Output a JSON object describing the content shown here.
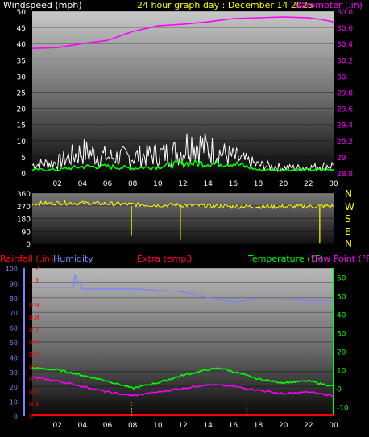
{
  "header": {
    "left_label": "Windspeed (mph)",
    "center_label": "24 hour graph day : December 14 2025",
    "right_label": "Barometer (.in)"
  },
  "colors": {
    "background": "#000000",
    "windspeed_label": "#ffffff",
    "title": "#ffff00",
    "barometer": "#ff00ff",
    "gust": "#ffffff",
    "wind_avg": "#00ff00",
    "direction": "#ffff00",
    "rainfall": "#ff0000",
    "humidity": "#8080ff",
    "extra_temp": "#ff0040",
    "temperature": "#00ff00",
    "dew_point": "#ff00ff"
  },
  "bottom_header": {
    "rainfall": "Rainfall (.in)",
    "humidity": "Humidity",
    "extra_temp": "Extra temp3",
    "temperature": "Temperature (°F)",
    "dew_point": "Dew Point (°F)"
  },
  "direction_labels": [
    "N",
    "W",
    "S",
    "E",
    "N"
  ],
  "chart_data": [
    {
      "type": "line",
      "x_ticks": [
        "02",
        "04",
        "06",
        "08",
        "10",
        "12",
        "14",
        "16",
        "18",
        "20",
        "22",
        "00"
      ],
      "y_left": {
        "label": "Windspeed (mph)",
        "ticks": [
          0,
          5,
          10,
          15,
          20,
          25,
          30,
          35,
          40,
          45,
          50
        ],
        "range": [
          0,
          50
        ]
      },
      "y_right": {
        "label": "Barometer (.in)",
        "ticks": [
          "28.8",
          "29",
          "29.2",
          "29.4",
          "29.6",
          "29.8",
          "30",
          "30.2",
          "30.4",
          "30.6",
          "30.8"
        ],
        "range": [
          28.8,
          30.8
        ]
      },
      "series": [
        {
          "name": "Gust",
          "axis": "left",
          "x_hours": [
            0,
            2,
            4,
            6,
            8,
            10,
            12,
            12.5,
            14,
            16,
            18,
            20,
            22,
            24
          ],
          "values": [
            3,
            4,
            8,
            6,
            6,
            7,
            8,
            12,
            9,
            6,
            3,
            2,
            2,
            3
          ]
        },
        {
          "name": "Wind speed",
          "axis": "left",
          "x_hours": [
            0,
            2,
            4,
            6,
            8,
            10,
            12,
            14,
            16,
            18,
            20,
            22,
            24
          ],
          "values": [
            1,
            1,
            2,
            2,
            1.5,
            2,
            3,
            3,
            3,
            1,
            1,
            1,
            1
          ]
        },
        {
          "name": "Barometer",
          "axis": "right",
          "x_hours": [
            0,
            2,
            4,
            6,
            8,
            10,
            12,
            14,
            16,
            18,
            20,
            22,
            23,
            24
          ],
          "values": [
            30.34,
            30.35,
            30.4,
            30.44,
            30.55,
            30.62,
            30.64,
            30.67,
            30.71,
            30.72,
            30.73,
            30.72,
            30.7,
            30.67
          ]
        }
      ]
    },
    {
      "type": "line",
      "y_ticks": [
        0,
        90,
        180,
        270,
        360
      ],
      "range": [
        0,
        360
      ],
      "series": [
        {
          "name": "Wind direction",
          "x_hours": [
            0,
            2,
            4,
            6,
            8,
            10,
            12,
            14,
            16,
            18,
            20,
            22,
            24
          ],
          "values": [
            285,
            290,
            290,
            285,
            280,
            275,
            275,
            270,
            265,
            265,
            265,
            265,
            270
          ]
        }
      ]
    },
    {
      "type": "line",
      "x_ticks": [
        "02",
        "04",
        "06",
        "08",
        "10",
        "12",
        "14",
        "16",
        "18",
        "20",
        "22",
        "00"
      ],
      "y_rainfall": {
        "label": "Rainfall (.in)",
        "ticks": [
          "0",
          "0.1",
          "0.2",
          "0.3",
          "0.4",
          "0.5",
          "0.6",
          "0.7",
          "0.8",
          "0.9",
          "1",
          "1.1",
          "1.2"
        ],
        "range": [
          0,
          1.2
        ]
      },
      "y_humidity": {
        "label": "Humidity",
        "ticks": [
          0,
          10,
          20,
          30,
          40,
          50,
          60,
          70,
          80,
          90,
          100
        ],
        "range": [
          0,
          100
        ]
      },
      "y_temperature": {
        "label": "Temperature (°F)",
        "ticks": [
          -10,
          0,
          10,
          20,
          30,
          40,
          50,
          60
        ],
        "range": [
          -15,
          65
        ]
      },
      "series": [
        {
          "name": "Humidity",
          "axis": "humidity",
          "x_hours": [
            0,
            2,
            3.3,
            3.4,
            4,
            6,
            8,
            10,
            12,
            14,
            16,
            18,
            20,
            22,
            24
          ],
          "values": [
            87,
            87,
            87,
            95,
            86,
            86,
            86,
            85,
            84,
            80,
            77,
            79,
            79,
            78,
            78
          ]
        },
        {
          "name": "Temperature",
          "axis": "temperature",
          "x_hours": [
            0,
            2,
            4,
            6,
            8,
            10,
            12,
            14,
            15,
            16,
            18,
            20,
            22,
            24
          ],
          "values": [
            11,
            10,
            7,
            4,
            0,
            3,
            7,
            10,
            11,
            9,
            5,
            3,
            4,
            1
          ]
        },
        {
          "name": "Dew Point",
          "axis": "temperature",
          "x_hours": [
            0,
            2,
            4,
            6,
            8,
            10,
            12,
            14,
            16,
            18,
            20,
            22,
            24
          ],
          "values": [
            6,
            4,
            1,
            -2,
            -4,
            -2,
            0,
            2,
            1,
            -1,
            -3,
            -2,
            -4
          ]
        },
        {
          "name": "Rainfall",
          "axis": "rainfall",
          "x_hours": [
            0,
            24
          ],
          "values": [
            0,
            0
          ]
        }
      ]
    }
  ]
}
